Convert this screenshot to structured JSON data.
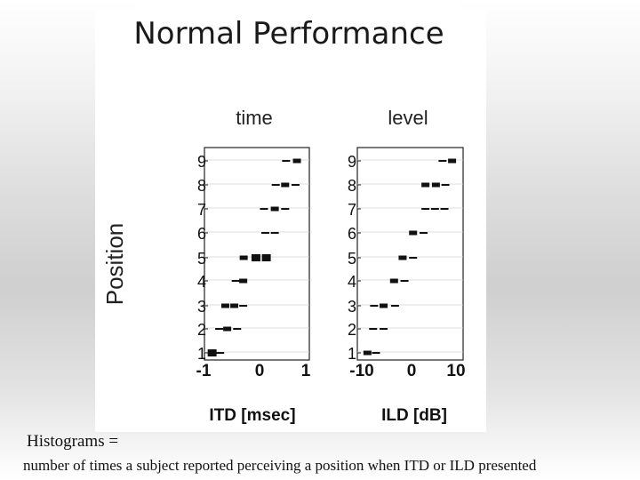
{
  "slide": {
    "title": "Normal Performance",
    "caption_line1": "Histograms =",
    "caption_line2": "number of times a subject reported perceiving a position when  ITD or ILD presented"
  },
  "chart_data": [
    {
      "type": "heatmap",
      "title": "time",
      "xlabel": "ITD [msec]",
      "ylabel": "Position",
      "xlim": [
        -1,
        1
      ],
      "ylim": [
        1,
        9
      ],
      "x_ticks": [
        "-1",
        "0",
        "1"
      ],
      "y_ticks": [
        "1",
        "2",
        "3",
        "4",
        "5",
        "6",
        "7",
        "8",
        "9"
      ],
      "x_values": [
        -1.0,
        -0.67,
        -0.33,
        0.0,
        0.33,
        0.67,
        1.0
      ],
      "points": [
        {
          "position": 1,
          "x": -0.95,
          "count": 3
        },
        {
          "position": 1,
          "x": -0.78,
          "count": 1
        },
        {
          "position": 2,
          "x": -0.8,
          "count": 1
        },
        {
          "position": 2,
          "x": -0.63,
          "count": 2
        },
        {
          "position": 2,
          "x": -0.42,
          "count": 1
        },
        {
          "position": 3,
          "x": -0.67,
          "count": 2
        },
        {
          "position": 3,
          "x": -0.48,
          "count": 2
        },
        {
          "position": 3,
          "x": -0.29,
          "count": 1
        },
        {
          "position": 4,
          "x": -0.45,
          "count": 1
        },
        {
          "position": 4,
          "x": -0.29,
          "count": 2
        },
        {
          "position": 5,
          "x": -0.28,
          "count": 2
        },
        {
          "position": 5,
          "x": -0.02,
          "count": 3
        },
        {
          "position": 5,
          "x": 0.2,
          "count": 3
        },
        {
          "position": 6,
          "x": 0.18,
          "count": 1
        },
        {
          "position": 6,
          "x": 0.38,
          "count": 1
        },
        {
          "position": 7,
          "x": 0.15,
          "count": 1
        },
        {
          "position": 7,
          "x": 0.38,
          "count": 2
        },
        {
          "position": 7,
          "x": 0.6,
          "count": 1
        },
        {
          "position": 8,
          "x": 0.4,
          "count": 1
        },
        {
          "position": 8,
          "x": 0.6,
          "count": 2
        },
        {
          "position": 8,
          "x": 0.82,
          "count": 1
        },
        {
          "position": 9,
          "x": 0.62,
          "count": 1
        },
        {
          "position": 9,
          "x": 0.85,
          "count": 2
        }
      ]
    },
    {
      "type": "heatmap",
      "title": "level",
      "xlabel": "ILD [dB]",
      "ylabel": "",
      "xlim": [
        -10,
        10
      ],
      "ylim": [
        1,
        9
      ],
      "x_ticks": [
        "-10",
        "0",
        "10"
      ],
      "y_ticks": [
        "1",
        "2",
        "3",
        "4",
        "5",
        "6",
        "7",
        "8",
        "9"
      ],
      "x_values": [
        -10.0,
        -6.67,
        -3.33,
        0.0,
        3.33,
        6.67,
        10.0
      ],
      "points": [
        {
          "position": 1,
          "x": -9.0,
          "count": 2
        },
        {
          "position": 1,
          "x": -7.2,
          "count": 1
        },
        {
          "position": 2,
          "x": -7.8,
          "count": 1
        },
        {
          "position": 2,
          "x": -5.6,
          "count": 1
        },
        {
          "position": 3,
          "x": -7.6,
          "count": 1
        },
        {
          "position": 3,
          "x": -5.6,
          "count": 2
        },
        {
          "position": 3,
          "x": -3.2,
          "count": 1
        },
        {
          "position": 4,
          "x": -3.4,
          "count": 2
        },
        {
          "position": 4,
          "x": -1.2,
          "count": 1
        },
        {
          "position": 5,
          "x": -1.6,
          "count": 2
        },
        {
          "position": 5,
          "x": 0.6,
          "count": 1
        },
        {
          "position": 6,
          "x": 0.6,
          "count": 2
        },
        {
          "position": 6,
          "x": 2.8,
          "count": 1
        },
        {
          "position": 7,
          "x": 3.2,
          "count": 1
        },
        {
          "position": 7,
          "x": 5.2,
          "count": 1
        },
        {
          "position": 7,
          "x": 7.2,
          "count": 1
        },
        {
          "position": 8,
          "x": 3.2,
          "count": 2
        },
        {
          "position": 8,
          "x": 5.4,
          "count": 2
        },
        {
          "position": 8,
          "x": 7.4,
          "count": 1
        },
        {
          "position": 9,
          "x": 6.8,
          "count": 1
        },
        {
          "position": 9,
          "x": 8.8,
          "count": 2
        }
      ]
    }
  ]
}
